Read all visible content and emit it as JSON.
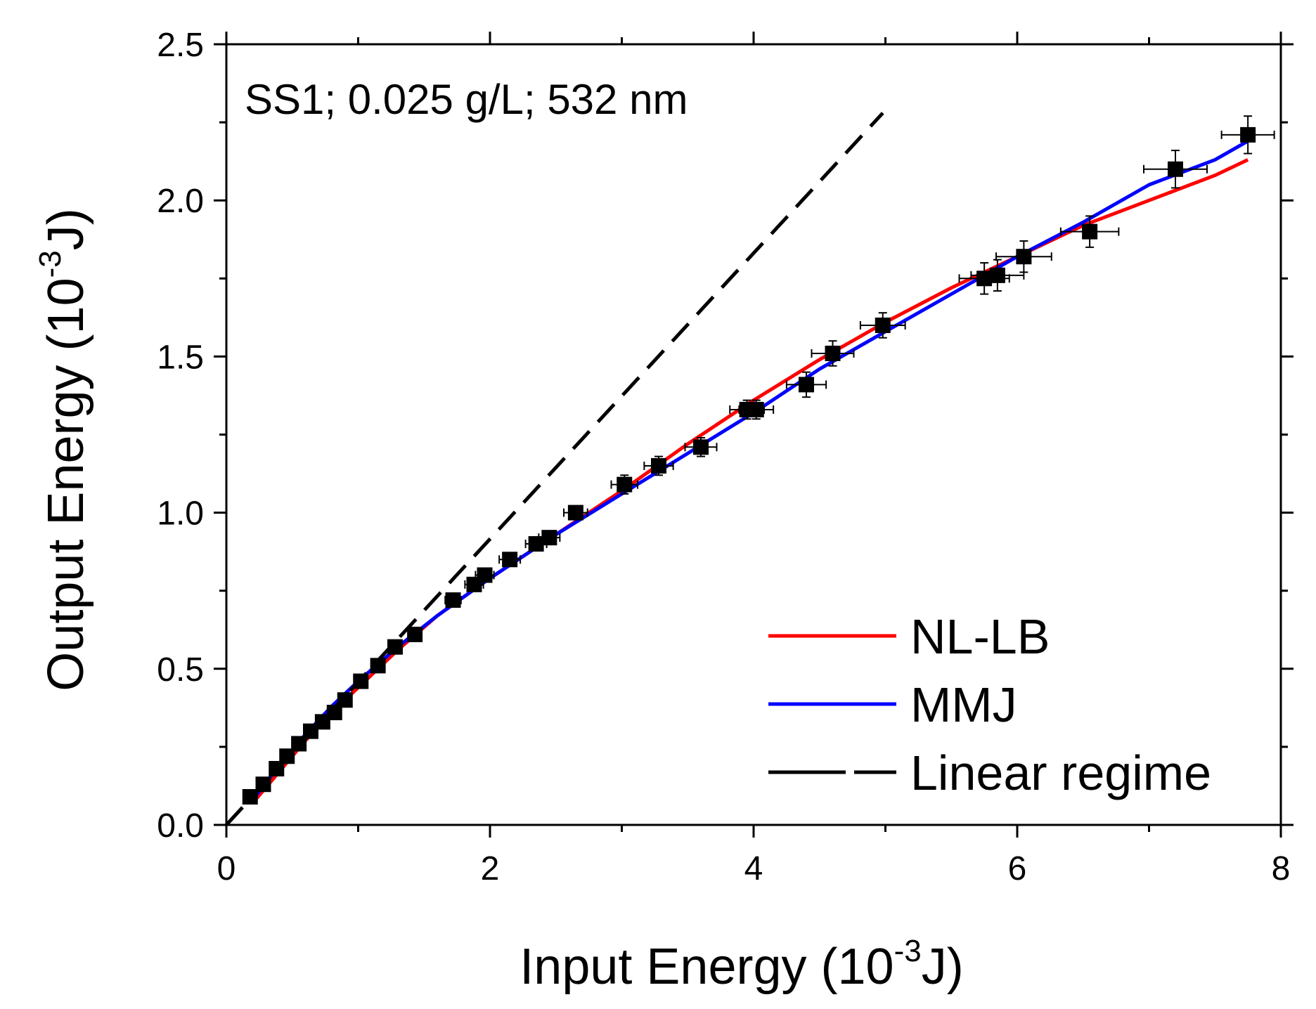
{
  "chart_data": {
    "type": "scatter",
    "title": "",
    "annotation": "SS1; 0.025 g/L; 532 nm",
    "xlabel": {
      "text": "Input Energy (10",
      "sup": "-3",
      "suffix": "J)"
    },
    "ylabel": {
      "text": "Output Energy (10",
      "sup": "-3",
      "suffix": "J)"
    },
    "xlim": [
      0,
      8
    ],
    "ylim": [
      0,
      2.5
    ],
    "xticks": [
      0,
      2,
      4,
      6,
      8
    ],
    "xtick_labels": [
      "0",
      "2",
      "4",
      "6",
      "8"
    ],
    "yticks": [
      0,
      0.5,
      1.0,
      1.5,
      2.0,
      2.5
    ],
    "ytick_labels": [
      "0.0",
      "0.5",
      "1.0",
      "1.5",
      "2.0",
      "2.5"
    ],
    "grid": false,
    "legend_position": "bottom-right",
    "colors": {
      "nl_lb": "#ff0000",
      "mmj": "#0000ff",
      "linear": "#000000",
      "data": "#000000"
    },
    "data_points": {
      "x": [
        0.18,
        0.28,
        0.38,
        0.46,
        0.55,
        0.64,
        0.73,
        0.82,
        0.9,
        1.02,
        1.15,
        1.28,
        1.43,
        1.72,
        1.88,
        1.96,
        2.15,
        2.35,
        2.45,
        2.65,
        3.02,
        3.28,
        3.6,
        3.95,
        4.02,
        4.4,
        4.6,
        4.98,
        5.75,
        5.85,
        6.05,
        6.55,
        7.2,
        7.75
      ],
      "y": [
        0.09,
        0.13,
        0.18,
        0.22,
        0.26,
        0.3,
        0.33,
        0.36,
        0.4,
        0.46,
        0.51,
        0.57,
        0.61,
        0.72,
        0.77,
        0.8,
        0.85,
        0.9,
        0.92,
        1.0,
        1.09,
        1.15,
        1.21,
        1.33,
        1.33,
        1.41,
        1.51,
        1.6,
        1.75,
        1.76,
        1.82,
        1.9,
        2.1,
        2.21
      ],
      "xerr": [
        0.02,
        0.02,
        0.02,
        0.02,
        0.02,
        0.03,
        0.03,
        0.03,
        0.03,
        0.04,
        0.04,
        0.04,
        0.05,
        0.06,
        0.07,
        0.07,
        0.08,
        0.08,
        0.08,
        0.09,
        0.1,
        0.11,
        0.12,
        0.13,
        0.13,
        0.15,
        0.16,
        0.17,
        0.19,
        0.2,
        0.21,
        0.22,
        0.24,
        0.2
      ],
      "yerr": [
        0.01,
        0.01,
        0.01,
        0.01,
        0.01,
        0.01,
        0.01,
        0.01,
        0.01,
        0.01,
        0.01,
        0.01,
        0.01,
        0.01,
        0.02,
        0.02,
        0.02,
        0.02,
        0.02,
        0.02,
        0.03,
        0.03,
        0.03,
        0.03,
        0.03,
        0.04,
        0.04,
        0.04,
        0.05,
        0.05,
        0.05,
        0.05,
        0.06,
        0.06
      ]
    },
    "series": [
      {
        "name": "NL-LB",
        "style": "solid",
        "color": "#ff0000",
        "x": [
          0.2,
          0.4,
          0.6,
          0.8,
          1.0,
          1.3,
          1.6,
          2.0,
          2.5,
          3.0,
          3.5,
          4.0,
          4.5,
          5.0,
          5.5,
          6.0,
          6.5,
          7.0,
          7.5,
          7.75
        ],
        "y": [
          0.07,
          0.17,
          0.27,
          0.36,
          0.44,
          0.56,
          0.67,
          0.79,
          0.93,
          1.07,
          1.22,
          1.36,
          1.49,
          1.61,
          1.72,
          1.82,
          1.92,
          2.0,
          2.08,
          2.13
        ]
      },
      {
        "name": "MMJ",
        "style": "solid",
        "color": "#0000ff",
        "x": [
          0.2,
          0.4,
          0.6,
          0.8,
          1.0,
          1.3,
          1.6,
          2.0,
          2.5,
          3.0,
          3.5,
          4.0,
          4.5,
          5.0,
          5.5,
          6.0,
          6.5,
          7.0,
          7.5,
          7.75
        ],
        "y": [
          0.08,
          0.19,
          0.29,
          0.38,
          0.46,
          0.57,
          0.67,
          0.79,
          0.93,
          1.06,
          1.19,
          1.32,
          1.46,
          1.58,
          1.7,
          1.82,
          1.93,
          2.05,
          2.13,
          2.19
        ]
      },
      {
        "name": "Linear regime",
        "style": "dashed",
        "color": "#000000",
        "x": [
          0.0,
          4.98
        ],
        "y": [
          0.0,
          2.28
        ]
      }
    ]
  }
}
